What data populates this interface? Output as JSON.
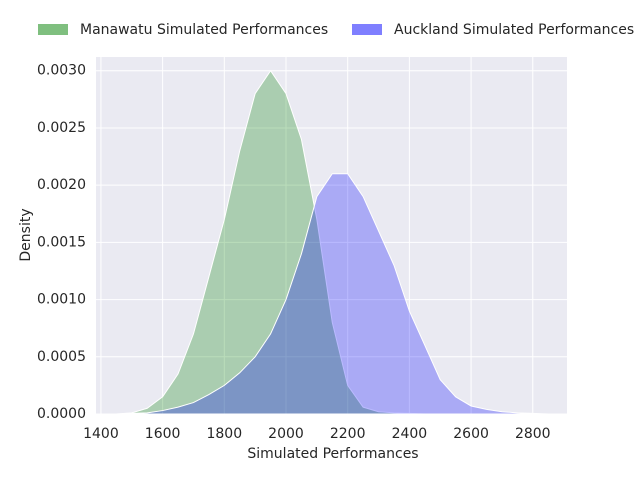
{
  "chart_data": {
    "type": "area",
    "x_label": "Simulated Performances",
    "y_label": "Density",
    "x": [
      1450,
      1500,
      1550,
      1600,
      1650,
      1700,
      1750,
      1800,
      1850,
      1900,
      1950,
      2000,
      2050,
      2100,
      2150,
      2200,
      2250,
      2300,
      2350,
      2400,
      2450,
      2500,
      2550,
      2600,
      2650,
      2700,
      2750,
      2800,
      2850
    ],
    "series": [
      {
        "name": "Manawatu Simulated Performances",
        "color": "#008000",
        "values": [
          0,
          1e-05,
          5e-05,
          0.00015,
          0.00035,
          0.0007,
          0.0012,
          0.0017,
          0.0023,
          0.0028,
          0.003,
          0.0028,
          0.0024,
          0.0017,
          0.0008,
          0.00025,
          6e-05,
          2e-05,
          1e-05,
          5e-06,
          0,
          null,
          null,
          null,
          null,
          null,
          null,
          null,
          null
        ]
      },
      {
        "name": "Auckland Simulated Performances",
        "color": "#0000ff",
        "values": [
          0,
          5e-06,
          1e-05,
          3e-05,
          6e-05,
          0.0001,
          0.00017,
          0.00025,
          0.00036,
          0.0005,
          0.0007,
          0.001,
          0.0014,
          0.0019,
          0.0021,
          0.0021,
          0.0019,
          0.0016,
          0.0013,
          0.0009,
          0.0006,
          0.0003,
          0.00015,
          7e-05,
          4e-05,
          2e-05,
          1e-05,
          5e-06,
          0
        ]
      }
    ],
    "xlim": [
      1384,
      2911
    ],
    "xticks": [
      1400,
      1600,
      1800,
      2000,
      2200,
      2400,
      2600,
      2800
    ],
    "ylim": [
      0,
      0.00312
    ],
    "yticks": [
      {
        "value": 0,
        "label": "0.0000"
      },
      {
        "value": 0.0005,
        "label": "0.0005"
      },
      {
        "value": 0.001,
        "label": "0.0010"
      },
      {
        "value": 0.0015,
        "label": "0.0015"
      },
      {
        "value": 0.002,
        "label": "0.0020"
      },
      {
        "value": 0.0025,
        "label": "0.0025"
      },
      {
        "value": 0.003,
        "label": "0.0030"
      }
    ],
    "grid": true,
    "legend": "top"
  }
}
